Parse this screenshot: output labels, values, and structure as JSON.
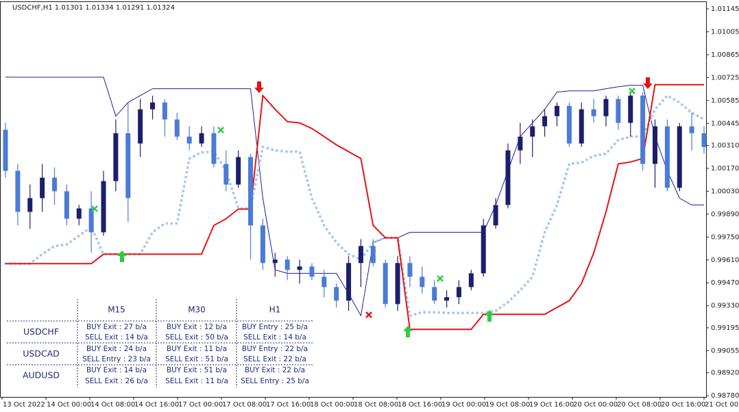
{
  "chart_data": {
    "type": "candlestick",
    "title": "USDCHF,H1  1.01301 1.01334 1.01291 1.01324",
    "up_color": "#1c1f6b",
    "down_color": "#4a7bd6",
    "open": [
      1.00406,
      1.00155,
      0.99904,
      0.99988,
      1.00113,
      1.0003,
      0.99862,
      0.99925,
      0.99779,
      1.00092,
      1.00385,
      1.00322,
      1.00531,
      1.00573,
      1.00469,
      1.00364,
      1.00322,
      1.00385,
      1.00197,
      1.00071,
      1.00239,
      0.99821,
      0.99591,
      0.99612,
      0.99549,
      0.9957,
      0.99507,
      0.99444,
      0.99361,
      0.99591,
      0.99695,
      0.99591,
      0.9934,
      0.99591,
      0.99507,
      0.99444,
      0.99361,
      0.99382,
      0.99444,
      0.99528,
      0.99821,
      0.99946,
      1.0028,
      1.00364,
      1.00427,
      1.00489,
      1.00552,
      1.00322,
      1.00531,
      1.00489,
      1.00594,
      1.00448,
      1.00615,
      1.00197,
      1.00427,
      1.00051,
      1.00427,
      1.00385
    ],
    "high": [
      1.00448,
      1.00197,
      1.00071,
      1.00197,
      1.00176,
      1.00071,
      0.99946,
      1.0003,
      1.00155,
      1.00469,
      1.00573,
      1.00594,
      1.00615,
      1.00594,
      1.0051,
      1.00427,
      1.00427,
      1.00427,
      1.0028,
      1.0028,
      1.0026,
      0.99862,
      0.99653,
      0.99633,
      0.99612,
      0.99591,
      0.99549,
      0.99465,
      0.99633,
      0.99737,
      0.99737,
      0.99612,
      0.99633,
      0.99633,
      0.9957,
      0.99486,
      0.99424,
      0.99486,
      0.99549,
      0.99862,
      0.99988,
      1.00322,
      1.00448,
      1.00469,
      1.00531,
      1.00573,
      1.00573,
      1.00573,
      1.00594,
      1.00615,
      1.00615,
      1.00636,
      1.00636,
      1.00469,
      1.00469,
      1.00448,
      1.0051,
      1.00427
    ],
    "low": [
      1.00113,
      0.99821,
      0.998,
      0.99904,
      0.99946,
      0.99821,
      0.99821,
      0.99653,
      0.99758,
      1.0003,
      0.99842,
      1.00239,
      1.00469,
      1.00364,
      1.00343,
      1.0028,
      1.00301,
      1.00176,
      1.0003,
      1.00051,
      0.99612,
      0.99549,
      0.99507,
      0.99486,
      0.99465,
      0.99486,
      0.99382,
      0.99319,
      0.99298,
      0.99444,
      0.9957,
      0.99319,
      0.99298,
      0.99444,
      0.99403,
      0.9934,
      0.99319,
      0.9934,
      0.99424,
      0.99507,
      0.998,
      0.99925,
      1.00197,
      1.00239,
      1.00364,
      1.00427,
      1.00301,
      1.00301,
      1.00448,
      1.00427,
      1.00406,
      1.00364,
      1.00155,
      1.00051,
      1.0003,
      1.0003,
      1.0028,
      1.0026
    ],
    "close": [
      1.00155,
      0.99904,
      0.99988,
      1.00113,
      1.0003,
      0.99862,
      0.99925,
      0.99779,
      1.00092,
      1.00385,
      0.99988,
      1.00531,
      1.00573,
      1.00469,
      1.00364,
      1.00322,
      1.00385,
      1.00197,
      1.00071,
      1.00239,
      0.99821,
      0.99591,
      0.99612,
      0.99549,
      0.9957,
      0.99507,
      0.99444,
      0.99361,
      0.99591,
      0.99695,
      0.99591,
      0.9934,
      0.99591,
      0.99507,
      0.99444,
      0.99361,
      0.99382,
      0.99444,
      0.99528,
      0.99821,
      0.99946,
      1.0028,
      1.00364,
      1.00427,
      1.00489,
      1.00552,
      1.00322,
      1.00531,
      1.00489,
      1.00594,
      1.00448,
      1.00615,
      1.00197,
      1.00427,
      1.00051,
      1.00427,
      1.00385,
      1.00301
    ],
    "lines": [
      {
        "color": "#1a1aa8",
        "style": "solid",
        "values": [
          1.00728,
          1.00728,
          1.00728,
          1.00728,
          1.00728,
          1.00728,
          1.00728,
          1.00728,
          1.00728,
          1.00489,
          1.00573,
          1.00615,
          1.00657,
          1.00657,
          1.00657,
          1.00657,
          1.00657,
          1.00657,
          1.00657,
          1.00657,
          1.00657,
          0.99988,
          0.99549,
          0.99528,
          0.99528,
          0.99528,
          0.99528,
          0.99528,
          0.99403,
          0.99269,
          0.99716,
          0.99745,
          0.99745,
          0.99779,
          0.99779,
          0.99779,
          0.99779,
          0.99779,
          0.99779,
          0.99779,
          0.99946,
          1.00155,
          1.00364,
          1.00448,
          1.00531,
          1.00636,
          1.00644,
          1.00644,
          1.00644,
          1.00657,
          1.00669,
          1.00678,
          1.00678,
          1.00364,
          1.00155,
          0.99988,
          0.99946,
          0.99946
        ]
      },
      {
        "color": "#a9c9ee",
        "style": "dotted",
        "values": [
          0.99587,
          0.99587,
          0.99587,
          0.99645,
          0.99695,
          0.99704,
          0.99758,
          0.99812,
          0.99645,
          0.99645,
          0.99645,
          0.99645,
          0.99779,
          0.99833,
          0.99833,
          1.0023,
          1.00268,
          1.00272,
          1.00155,
          0.99925,
          0.99925,
          1.00301,
          1.0028,
          1.00272,
          1.00272,
          0.99988,
          0.99821,
          0.99716,
          0.99645,
          0.99612,
          0.99716,
          0.99745,
          0.99745,
          0.99269,
          0.9929,
          0.9929,
          0.99286,
          0.99286,
          0.99286,
          0.99286,
          0.99298,
          0.99352,
          0.99424,
          0.99507,
          0.99779,
          0.99946,
          1.00197,
          1.00205,
          1.00247,
          1.0026,
          1.00343,
          1.00364,
          1.00364,
          1.00531,
          1.00615,
          1.00573,
          1.0051,
          1.00469
        ]
      },
      {
        "color": "#e81212",
        "style": "solid",
        "values": [
          0.99587,
          0.99587,
          0.99587,
          0.99587,
          0.99587,
          0.99587,
          0.99587,
          0.99587,
          0.99645,
          0.99645,
          0.99645,
          0.99645,
          0.99645,
          0.99645,
          0.99645,
          0.99645,
          0.99645,
          0.99821,
          0.99862,
          0.99921,
          0.99921,
          1.00615,
          1.00531,
          1.00456,
          1.00448,
          1.00414,
          1.00364,
          1.00314,
          1.00272,
          1.0023,
          0.99821,
          0.99745,
          0.99745,
          0.99185,
          0.99185,
          0.99185,
          0.99185,
          0.99185,
          0.99185,
          0.99277,
          0.99277,
          0.99277,
          0.99277,
          0.99277,
          0.99277,
          0.99319,
          0.99361,
          0.99465,
          0.99653,
          0.99904,
          1.00197,
          1.00209,
          1.0023,
          1.00682,
          1.00682,
          1.00682,
          1.00682,
          1.00682
        ]
      }
    ],
    "ylim": [
      0.98772,
      1.01187
    ],
    "yticks": [
      1.01145,
      1.01005,
      1.00865,
      1.00725,
      1.00585,
      1.00445,
      {
        "value": 1.0031,
        "label": "1.00310"
      },
      {
        "value": 1.0017,
        "label": "1.00170"
      },
      {
        "value": 1.0003,
        "label": "1.00030"
      },
      {
        "value": 0.9989,
        "label": "0.99890"
      },
      {
        "value": 0.9975,
        "label": "0.99750"
      },
      {
        "value": 0.9961,
        "label": "0.99610"
      },
      {
        "value": 0.9947,
        "label": "0.99470"
      },
      {
        "value": 0.9933,
        "label": "0.99330"
      },
      0.99195,
      0.99055,
      {
        "value": 0.9892,
        "label": "0.98920"
      },
      {
        "value": 0.9878,
        "label": "0.98780"
      }
    ],
    "xlabels": [
      "13 Oct 2022",
      "14 Oct 00:00",
      "14 Oct 08:00",
      "14 Oct 16:00",
      "17 Oct 00:00",
      "17 Oct 08:00",
      "17 Oct 16:00",
      "18 Oct 00:00",
      "18 Oct 08:00",
      "18 Oct 16:00",
      "19 Oct 00:00",
      "19 Oct 08:00",
      "19 Oct 16:00",
      "20 Oct 00:00",
      "20 Oct 08:00",
      "20 Oct 16:00",
      "21 Oct 00:00"
    ]
  },
  "signal_table": {
    "columns": [
      "M15",
      "M30",
      "H1"
    ],
    "rows": [
      {
        "symbol": "USDCHF",
        "cells": [
          [
            "BUY Exit : 27 b/a",
            "SELL Exit : 14 b/a"
          ],
          [
            "BUY Exit : 12 b/a",
            "SELL Exit : 50 b/a"
          ],
          [
            "BUY Entry : 25 b/a",
            "SELL Exit : 14 b/a"
          ]
        ]
      },
      {
        "symbol": "USDCAD",
        "cells": [
          [
            "BUY Exit : 24 b/a",
            "SELL Entry : 23 b/a"
          ],
          [
            "BUY Exit : 11 b/a",
            "SELL Exit : 51 b/a"
          ],
          [
            "BUY Entry : 22 b/a",
            "SELL Exit : 22 b/a"
          ]
        ]
      },
      {
        "symbol": "AUDUSD",
        "cells": [
          [
            "BUY Exit : 14 b/a",
            "SELL Exit : 26 b/a"
          ],
          [
            "BUY Exit : 51 b/a",
            "SELL Exit : 11 b/a"
          ],
          [
            "BUY Exit : 22 b/a",
            "SELL Entry : 25 b/a"
          ]
        ]
      }
    ]
  }
}
